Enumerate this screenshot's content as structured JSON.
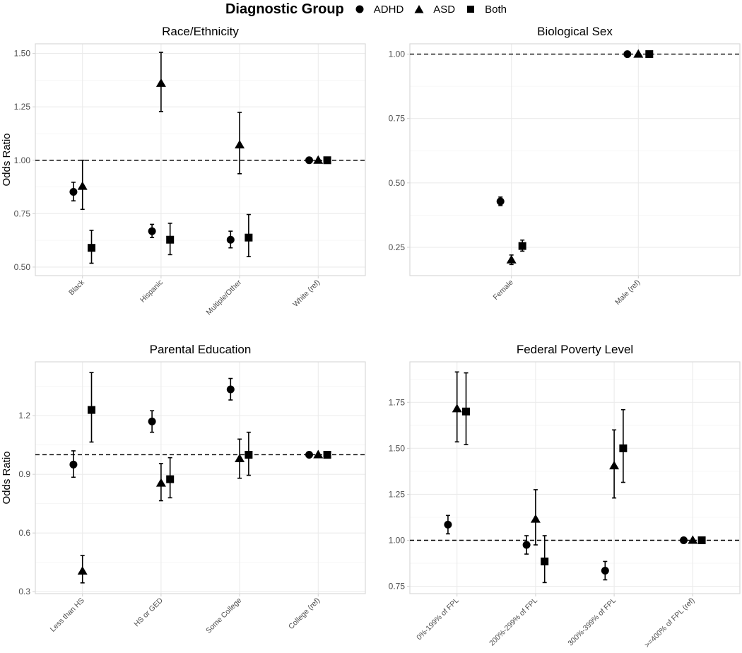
{
  "legend": {
    "title": "Diagnostic Group",
    "items": [
      {
        "label": "ADHD",
        "shape": "circle"
      },
      {
        "label": "ASD",
        "shape": "triangle"
      },
      {
        "label": "Both",
        "shape": "square"
      }
    ]
  },
  "chart_data": [
    {
      "type": "scatter",
      "subtype": "point-with-errorbars",
      "title": "Race/Ethnicity",
      "ylabel": "Odds Ratio",
      "xlabel": "",
      "reference_line": 1.0,
      "ylim": [
        0.46,
        1.545
      ],
      "yticks": [
        0.5,
        0.75,
        1.0,
        1.25,
        1.5
      ],
      "ytick_labels": [
        "0.50",
        "0.75",
        "1.00",
        "1.25",
        "1.50"
      ],
      "grid": true,
      "categories": [
        "Black",
        "Hispanic",
        "Multiple/Other",
        "White (ref)"
      ],
      "series": [
        {
          "name": "ADHD",
          "shape": "circle",
          "values": [
            0.852,
            0.668,
            0.628,
            1.0
          ],
          "lower": [
            0.81,
            0.638,
            0.59,
            1.0
          ],
          "upper": [
            0.897,
            0.7,
            0.668,
            1.0
          ]
        },
        {
          "name": "ASD",
          "shape": "triangle",
          "values": [
            0.878,
            1.36,
            1.072,
            1.0
          ],
          "lower": [
            0.77,
            1.228,
            0.937,
            1.0
          ],
          "upper": [
            1.0,
            1.505,
            1.224,
            1.0
          ]
        },
        {
          "name": "Both",
          "shape": "square",
          "values": [
            0.59,
            0.628,
            0.638,
            1.0
          ],
          "lower": [
            0.518,
            0.558,
            0.549,
            1.0
          ],
          "upper": [
            0.672,
            0.705,
            0.746,
            1.0
          ]
        }
      ]
    },
    {
      "type": "scatter",
      "subtype": "point-with-errorbars",
      "title": "Biological Sex",
      "ylabel": "",
      "xlabel": "",
      "reference_line": 1.0,
      "ylim": [
        0.14,
        1.04
      ],
      "yticks": [
        0.25,
        0.5,
        0.75,
        1.0
      ],
      "ytick_labels": [
        "0.25",
        "0.50",
        "0.75",
        "1.00"
      ],
      "grid": true,
      "categories": [
        "Female",
        "Male (ref)"
      ],
      "series": [
        {
          "name": "ADHD",
          "shape": "circle",
          "values": [
            0.428,
            1.0
          ],
          "lower": [
            0.412,
            1.0
          ],
          "upper": [
            0.445,
            1.0
          ]
        },
        {
          "name": "ASD",
          "shape": "triangle",
          "values": [
            0.201,
            1.0
          ],
          "lower": [
            0.183,
            1.0
          ],
          "upper": [
            0.22,
            1.0
          ]
        },
        {
          "name": "Both",
          "shape": "square",
          "values": [
            0.255,
            1.0
          ],
          "lower": [
            0.235,
            1.0
          ],
          "upper": [
            0.278,
            1.0
          ]
        }
      ]
    },
    {
      "type": "scatter",
      "subtype": "point-with-errorbars",
      "title": "Parental Education",
      "ylabel": "Odds Ratio",
      "xlabel": "",
      "reference_line": 1.0,
      "ylim": [
        0.29,
        1.475
      ],
      "yticks": [
        0.3,
        0.6,
        0.9,
        1.2
      ],
      "ytick_labels": [
        "0.3",
        "0.6",
        "0.9",
        "1.2"
      ],
      "grid": true,
      "categories": [
        "Less than HS",
        "HS or GED",
        "Some College",
        "College (ref)"
      ],
      "series": [
        {
          "name": "ADHD",
          "shape": "circle",
          "values": [
            0.95,
            1.17,
            1.334,
            1.0
          ],
          "lower": [
            0.885,
            1.115,
            1.28,
            1.0
          ],
          "upper": [
            1.02,
            1.225,
            1.39,
            1.0
          ]
        },
        {
          "name": "ASD",
          "shape": "triangle",
          "values": [
            0.405,
            0.855,
            0.98,
            1.0
          ],
          "lower": [
            0.345,
            0.765,
            0.88,
            1.0
          ],
          "upper": [
            0.485,
            0.955,
            1.08,
            1.0
          ]
        },
        {
          "name": "Both",
          "shape": "square",
          "values": [
            1.229,
            0.875,
            1.0,
            1.0
          ],
          "lower": [
            1.065,
            0.78,
            0.895,
            1.0
          ],
          "upper": [
            1.42,
            0.985,
            1.115,
            1.0
          ]
        }
      ]
    },
    {
      "type": "scatter",
      "subtype": "point-with-errorbars",
      "title": "Federal Poverty Level",
      "ylabel": "",
      "xlabel": "",
      "reference_line": 1.0,
      "ylim": [
        0.71,
        1.97
      ],
      "yticks": [
        0.75,
        1.0,
        1.25,
        1.5,
        1.75
      ],
      "ytick_labels": [
        "0.75",
        "1.00",
        "1.25",
        "1.50",
        "1.75"
      ],
      "grid": true,
      "categories": [
        "0%-199% of FPL",
        "200%-299% of FPL",
        "300%-399% of FPL",
        ">=400% of FPL (ref)"
      ],
      "series": [
        {
          "name": "ADHD",
          "shape": "circle",
          "values": [
            1.085,
            0.975,
            0.835,
            1.0
          ],
          "lower": [
            1.035,
            0.925,
            0.785,
            1.0
          ],
          "upper": [
            1.135,
            1.025,
            0.885,
            1.0
          ]
        },
        {
          "name": "ASD",
          "shape": "triangle",
          "values": [
            1.715,
            1.115,
            1.405,
            1.0
          ],
          "lower": [
            1.535,
            0.975,
            1.23,
            1.0
          ],
          "upper": [
            1.915,
            1.275,
            1.6,
            1.0
          ]
        },
        {
          "name": "Both",
          "shape": "square",
          "values": [
            1.7,
            0.885,
            1.5,
            1.0
          ],
          "lower": [
            1.52,
            0.77,
            1.315,
            1.0
          ],
          "upper": [
            1.91,
            1.025,
            1.71,
            1.0
          ]
        }
      ]
    }
  ]
}
